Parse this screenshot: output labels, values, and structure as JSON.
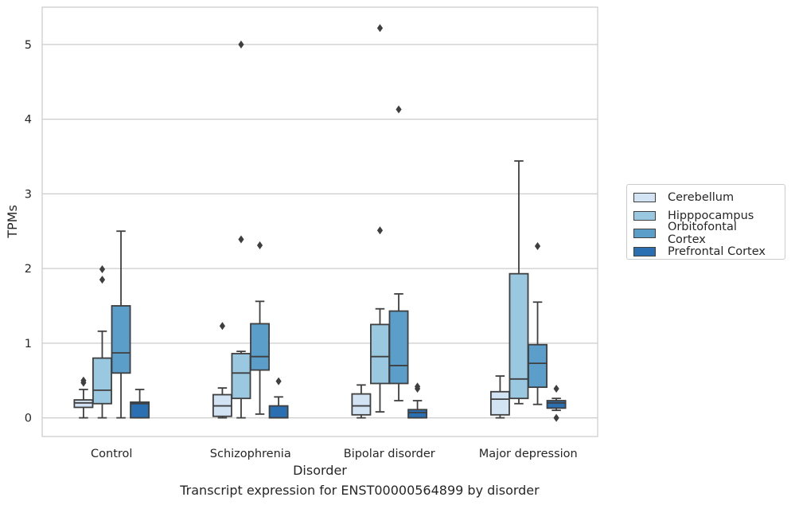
{
  "caption": "Transcript expression for ENST00000564899 by disorder",
  "chart_data": {
    "type": "box",
    "title": "",
    "xlabel": "Disorder",
    "ylabel": "TPMs",
    "ylim": [
      -0.25,
      5.5
    ],
    "yticks": [
      0,
      1,
      2,
      3,
      4,
      5
    ],
    "grid": "horizontal",
    "legend_position": "right",
    "categories": [
      "Control",
      "Schizophrenia",
      "Bipolar disorder",
      "Major depression"
    ],
    "series": [
      {
        "name": "Cerebellum",
        "color": "#d2e3f3",
        "boxes": [
          {
            "whislo": 0.0,
            "q1": 0.14,
            "med": 0.2,
            "q3": 0.24,
            "whishi": 0.38,
            "fliers": [
              0.47,
              0.5
            ]
          },
          {
            "whislo": 0.0,
            "q1": 0.02,
            "med": 0.16,
            "q3": 0.31,
            "whishi": 0.4,
            "fliers": [
              1.23
            ]
          },
          {
            "whislo": 0.0,
            "q1": 0.04,
            "med": 0.16,
            "q3": 0.32,
            "whishi": 0.44,
            "fliers": []
          },
          {
            "whislo": 0.0,
            "q1": 0.04,
            "med": 0.25,
            "q3": 0.35,
            "whishi": 0.56,
            "fliers": []
          }
        ]
      },
      {
        "name": "Hipppocampus",
        "color": "#9ac8e0",
        "boxes": [
          {
            "whislo": 0.0,
            "q1": 0.19,
            "med": 0.37,
            "q3": 0.8,
            "whishi": 1.16,
            "fliers": [
              1.85,
              1.99
            ]
          },
          {
            "whislo": 0.0,
            "q1": 0.26,
            "med": 0.6,
            "q3": 0.86,
            "whishi": 0.89,
            "fliers": [
              2.39,
              5.0
            ]
          },
          {
            "whislo": 0.08,
            "q1": 0.46,
            "med": 0.82,
            "q3": 1.25,
            "whishi": 1.46,
            "fliers": [
              2.51,
              5.22
            ]
          },
          {
            "whislo": 0.19,
            "q1": 0.26,
            "med": 0.52,
            "q3": 1.93,
            "whishi": 3.44,
            "fliers": []
          }
        ]
      },
      {
        "name": "Orbitofontal Cortex",
        "color": "#5a9ec9",
        "boxes": [
          {
            "whislo": 0.0,
            "q1": 0.6,
            "med": 0.87,
            "q3": 1.5,
            "whishi": 2.5,
            "fliers": []
          },
          {
            "whislo": 0.05,
            "q1": 0.64,
            "med": 0.82,
            "q3": 1.26,
            "whishi": 1.56,
            "fliers": [
              2.31
            ]
          },
          {
            "whislo": 0.23,
            "q1": 0.46,
            "med": 0.7,
            "q3": 1.43,
            "whishi": 1.66,
            "fliers": [
              4.13
            ]
          },
          {
            "whislo": 0.18,
            "q1": 0.41,
            "med": 0.73,
            "q3": 0.98,
            "whishi": 1.55,
            "fliers": [
              2.3
            ]
          }
        ]
      },
      {
        "name": "Prefrontal Cortex",
        "color": "#2a6fb1",
        "boxes": [
          {
            "whislo": 0.0,
            "q1": 0.0,
            "med": 0.19,
            "q3": 0.21,
            "whishi": 0.38,
            "fliers": []
          },
          {
            "whislo": 0.0,
            "q1": 0.0,
            "med": 0.0,
            "q3": 0.16,
            "whishi": 0.28,
            "fliers": [
              0.49
            ]
          },
          {
            "whislo": 0.0,
            "q1": 0.0,
            "med": 0.07,
            "q3": 0.11,
            "whishi": 0.23,
            "fliers": [
              0.39,
              0.42
            ]
          },
          {
            "whislo": 0.1,
            "q1": 0.13,
            "med": 0.2,
            "q3": 0.23,
            "whishi": 0.26,
            "fliers": [
              0.0,
              0.39
            ]
          }
        ]
      }
    ]
  }
}
